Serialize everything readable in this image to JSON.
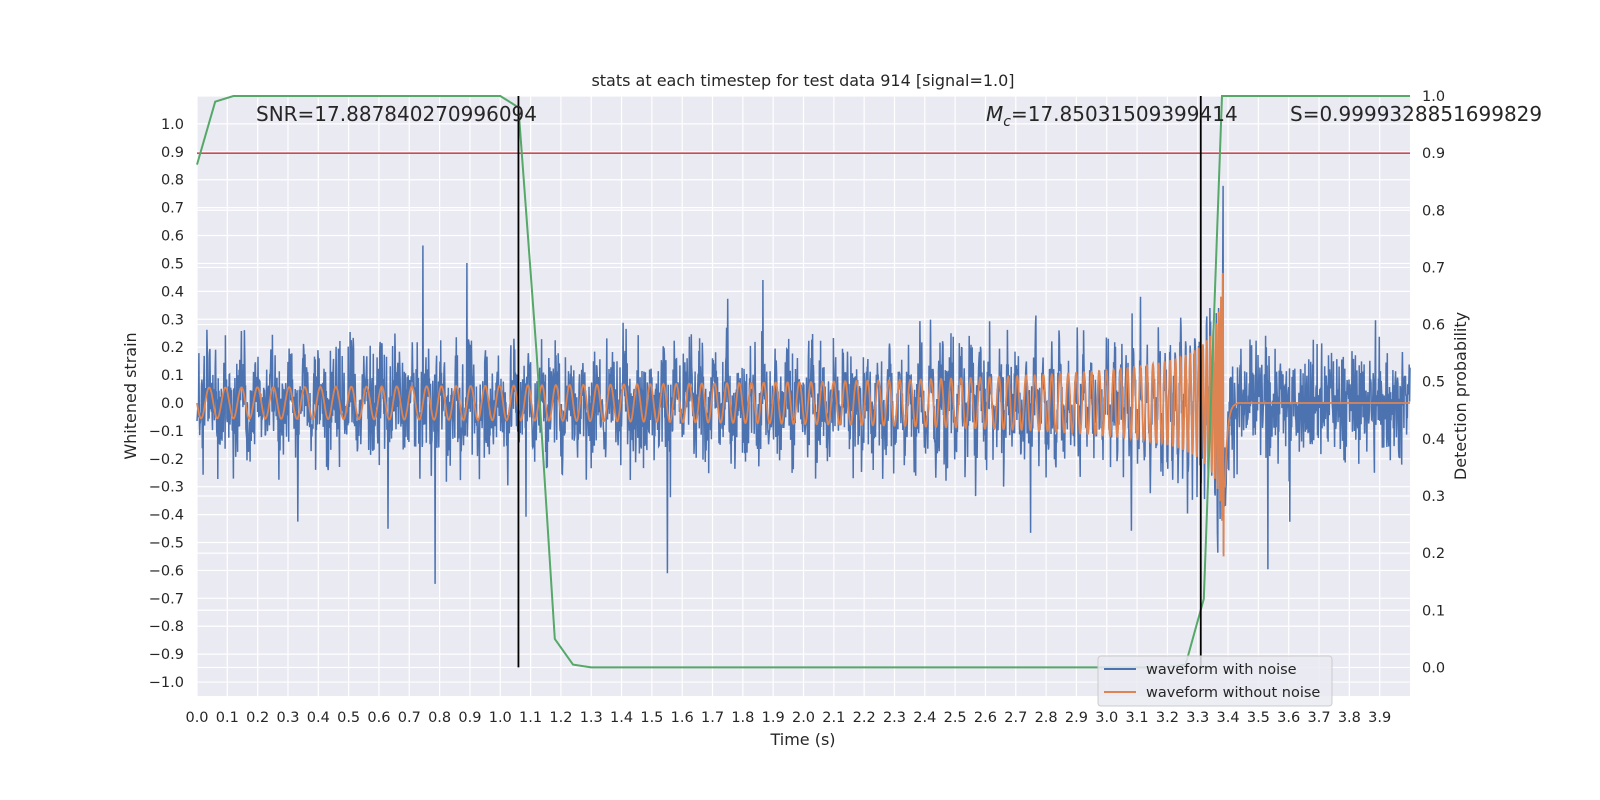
{
  "chart_data": {
    "type": "line",
    "title": "stats at each timestep for test data 914 [signal=1.0]",
    "xlabel": "Time (s)",
    "ylabel": "Whitened strain",
    "y2label": "Detection probability",
    "xlim": [
      0,
      4
    ],
    "ylim": [
      -1.05,
      1.1
    ],
    "y2lim": [
      -0.05,
      1.0
    ],
    "x_ticks": [
      "0.0",
      "0.1",
      "0.2",
      "0.3",
      "0.4",
      "0.5",
      "0.6",
      "0.7",
      "0.8",
      "0.9",
      "1.0",
      "1.1",
      "1.2",
      "1.3",
      "1.4",
      "1.5",
      "1.6",
      "1.7",
      "1.8",
      "1.9",
      "2.0",
      "2.1",
      "2.2",
      "2.3",
      "2.4",
      "2.5",
      "2.6",
      "2.7",
      "2.8",
      "2.9",
      "3.0",
      "3.1",
      "3.2",
      "3.3",
      "3.4",
      "3.5",
      "3.6",
      "3.7",
      "3.8",
      "3.9"
    ],
    "y_ticks": [
      "1.0",
      "0.9",
      "0.8",
      "0.7",
      "0.6",
      "0.5",
      "0.4",
      "0.3",
      "0.2",
      "0.1",
      "0.0",
      "−0.1",
      "−0.2",
      "−0.3",
      "−0.4",
      "−0.5",
      "−0.6",
      "−0.7",
      "−0.8",
      "−0.9",
      "−1.0"
    ],
    "y2_ticks": [
      "1.0",
      "0.9",
      "0.8",
      "0.7",
      "0.6",
      "0.5",
      "0.4",
      "0.3",
      "0.2",
      "0.1",
      "0.0"
    ],
    "grid": true,
    "legend_position": "lower-right",
    "series": [
      {
        "name": "waveform with noise",
        "color": "#4c72b0",
        "axis": "left"
      },
      {
        "name": "waveform without noise",
        "color": "#dd8452",
        "axis": "left"
      },
      {
        "color": "#55a868",
        "axis": "right",
        "x": [
          0.0,
          0.06,
          0.12,
          0.2,
          0.5,
          1.0,
          1.06,
          1.12,
          1.18,
          1.24,
          1.3,
          1.36,
          3.2,
          3.26,
          3.32,
          3.38,
          3.45,
          4.0
        ],
        "y": [
          0.88,
          0.99,
          1.0,
          1.0,
          1.0,
          1.0,
          0.98,
          0.55,
          0.05,
          0.005,
          0.0,
          0.0,
          0.0,
          0.005,
          0.12,
          1.0,
          1.0,
          1.0
        ]
      }
    ],
    "threshold_line": {
      "y": 0.9,
      "axis": "right",
      "color": "#c44e52"
    },
    "vertical_lines": [
      1.06,
      3.31
    ],
    "annotations": [
      {
        "text": "SNR=17.887840270996094"
      },
      {
        "text_parts": [
          "M",
          "c",
          "=17.85031509399414"
        ]
      },
      {
        "text": "S=0.9999328851699829"
      }
    ]
  }
}
